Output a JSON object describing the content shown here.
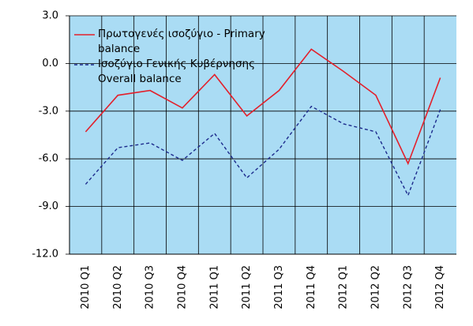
{
  "chart_data": {
    "type": "line",
    "categories": [
      "2010 Q1",
      "2010 Q2",
      "2010 Q3",
      "2010 Q4",
      "2011 Q1",
      "2011 Q2",
      "2011 Q3",
      "2011 Q4",
      "2012 Q1",
      "2012 Q2",
      "2012 Q3",
      "2012 Q4"
    ],
    "series": [
      {
        "name": "Πρωτογενές ισοζύγιο - Primary balance",
        "color": "#e3202b",
        "dash": false,
        "values": [
          -4.3,
          -2.0,
          -1.7,
          -2.8,
          -0.7,
          -3.3,
          -1.7,
          0.9,
          -0.5,
          -2.0,
          -6.3,
          -0.9
        ]
      },
      {
        "name": "Ισοζύγιο Γενικής Κυβέρνησης Overall balance",
        "color": "#1c2a8c",
        "dash": true,
        "values": [
          -7.6,
          -5.3,
          -5.0,
          -6.1,
          -4.4,
          -7.2,
          -5.4,
          -2.7,
          -3.8,
          -4.3,
          -8.3,
          -2.9
        ]
      }
    ],
    "ylim": [
      -12,
      3
    ],
    "yticks": [
      {
        "value": 3,
        "label": "3.0"
      },
      {
        "value": 0,
        "label": "0.0"
      },
      {
        "value": -3,
        "label": "-3.0"
      },
      {
        "value": -6,
        "label": "-6.0"
      },
      {
        "value": -9,
        "label": "-9.0"
      },
      {
        "value": -12,
        "label": "-12.0"
      }
    ],
    "grid": true,
    "plot_background": "#aadcf4",
    "legend": "upper left"
  }
}
